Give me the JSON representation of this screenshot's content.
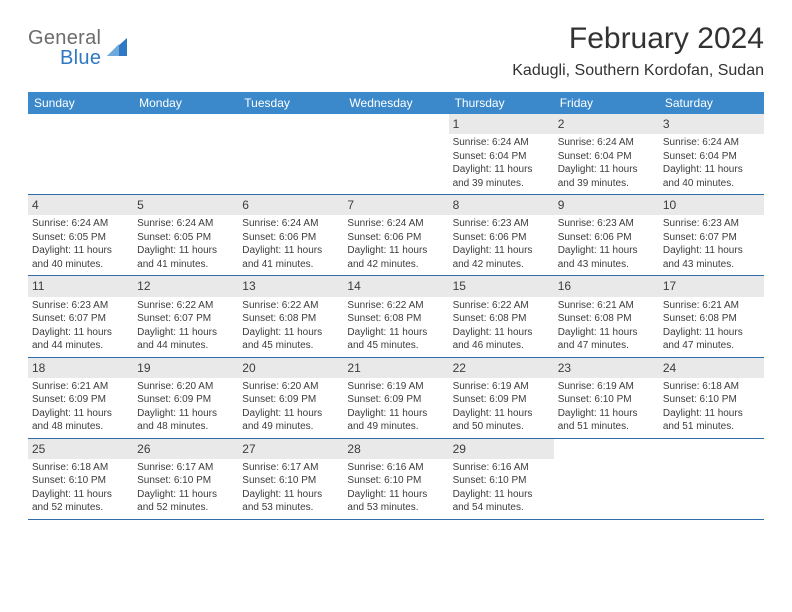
{
  "logo": {
    "general": "General",
    "blue": "Blue",
    "icon_color": "#2f78c3"
  },
  "title": "February 2024",
  "location": "Kadugli, Southern Kordofan, Sudan",
  "weekdays": [
    "Sunday",
    "Monday",
    "Tuesday",
    "Wednesday",
    "Thursday",
    "Friday",
    "Saturday"
  ],
  "colors": {
    "header_bg": "#3b89ca",
    "header_text": "#ffffff",
    "daynum_bg": "#e9e9e9",
    "border": "#2f6da9",
    "logo_gray": "#6c6c6c",
    "logo_blue": "#2f78c3",
    "text": "#3c3c3c"
  },
  "weeks": [
    [
      {
        "num": "",
        "sunrise": "",
        "sunset": "",
        "daylight1": "",
        "daylight2": ""
      },
      {
        "num": "",
        "sunrise": "",
        "sunset": "",
        "daylight1": "",
        "daylight2": ""
      },
      {
        "num": "",
        "sunrise": "",
        "sunset": "",
        "daylight1": "",
        "daylight2": ""
      },
      {
        "num": "",
        "sunrise": "",
        "sunset": "",
        "daylight1": "",
        "daylight2": ""
      },
      {
        "num": "1",
        "sunrise": "Sunrise: 6:24 AM",
        "sunset": "Sunset: 6:04 PM",
        "daylight1": "Daylight: 11 hours",
        "daylight2": "and 39 minutes."
      },
      {
        "num": "2",
        "sunrise": "Sunrise: 6:24 AM",
        "sunset": "Sunset: 6:04 PM",
        "daylight1": "Daylight: 11 hours",
        "daylight2": "and 39 minutes."
      },
      {
        "num": "3",
        "sunrise": "Sunrise: 6:24 AM",
        "sunset": "Sunset: 6:04 PM",
        "daylight1": "Daylight: 11 hours",
        "daylight2": "and 40 minutes."
      }
    ],
    [
      {
        "num": "4",
        "sunrise": "Sunrise: 6:24 AM",
        "sunset": "Sunset: 6:05 PM",
        "daylight1": "Daylight: 11 hours",
        "daylight2": "and 40 minutes."
      },
      {
        "num": "5",
        "sunrise": "Sunrise: 6:24 AM",
        "sunset": "Sunset: 6:05 PM",
        "daylight1": "Daylight: 11 hours",
        "daylight2": "and 41 minutes."
      },
      {
        "num": "6",
        "sunrise": "Sunrise: 6:24 AM",
        "sunset": "Sunset: 6:06 PM",
        "daylight1": "Daylight: 11 hours",
        "daylight2": "and 41 minutes."
      },
      {
        "num": "7",
        "sunrise": "Sunrise: 6:24 AM",
        "sunset": "Sunset: 6:06 PM",
        "daylight1": "Daylight: 11 hours",
        "daylight2": "and 42 minutes."
      },
      {
        "num": "8",
        "sunrise": "Sunrise: 6:23 AM",
        "sunset": "Sunset: 6:06 PM",
        "daylight1": "Daylight: 11 hours",
        "daylight2": "and 42 minutes."
      },
      {
        "num": "9",
        "sunrise": "Sunrise: 6:23 AM",
        "sunset": "Sunset: 6:06 PM",
        "daylight1": "Daylight: 11 hours",
        "daylight2": "and 43 minutes."
      },
      {
        "num": "10",
        "sunrise": "Sunrise: 6:23 AM",
        "sunset": "Sunset: 6:07 PM",
        "daylight1": "Daylight: 11 hours",
        "daylight2": "and 43 minutes."
      }
    ],
    [
      {
        "num": "11",
        "sunrise": "Sunrise: 6:23 AM",
        "sunset": "Sunset: 6:07 PM",
        "daylight1": "Daylight: 11 hours",
        "daylight2": "and 44 minutes."
      },
      {
        "num": "12",
        "sunrise": "Sunrise: 6:22 AM",
        "sunset": "Sunset: 6:07 PM",
        "daylight1": "Daylight: 11 hours",
        "daylight2": "and 44 minutes."
      },
      {
        "num": "13",
        "sunrise": "Sunrise: 6:22 AM",
        "sunset": "Sunset: 6:08 PM",
        "daylight1": "Daylight: 11 hours",
        "daylight2": "and 45 minutes."
      },
      {
        "num": "14",
        "sunrise": "Sunrise: 6:22 AM",
        "sunset": "Sunset: 6:08 PM",
        "daylight1": "Daylight: 11 hours",
        "daylight2": "and 45 minutes."
      },
      {
        "num": "15",
        "sunrise": "Sunrise: 6:22 AM",
        "sunset": "Sunset: 6:08 PM",
        "daylight1": "Daylight: 11 hours",
        "daylight2": "and 46 minutes."
      },
      {
        "num": "16",
        "sunrise": "Sunrise: 6:21 AM",
        "sunset": "Sunset: 6:08 PM",
        "daylight1": "Daylight: 11 hours",
        "daylight2": "and 47 minutes."
      },
      {
        "num": "17",
        "sunrise": "Sunrise: 6:21 AM",
        "sunset": "Sunset: 6:08 PM",
        "daylight1": "Daylight: 11 hours",
        "daylight2": "and 47 minutes."
      }
    ],
    [
      {
        "num": "18",
        "sunrise": "Sunrise: 6:21 AM",
        "sunset": "Sunset: 6:09 PM",
        "daylight1": "Daylight: 11 hours",
        "daylight2": "and 48 minutes."
      },
      {
        "num": "19",
        "sunrise": "Sunrise: 6:20 AM",
        "sunset": "Sunset: 6:09 PM",
        "daylight1": "Daylight: 11 hours",
        "daylight2": "and 48 minutes."
      },
      {
        "num": "20",
        "sunrise": "Sunrise: 6:20 AM",
        "sunset": "Sunset: 6:09 PM",
        "daylight1": "Daylight: 11 hours",
        "daylight2": "and 49 minutes."
      },
      {
        "num": "21",
        "sunrise": "Sunrise: 6:19 AM",
        "sunset": "Sunset: 6:09 PM",
        "daylight1": "Daylight: 11 hours",
        "daylight2": "and 49 minutes."
      },
      {
        "num": "22",
        "sunrise": "Sunrise: 6:19 AM",
        "sunset": "Sunset: 6:09 PM",
        "daylight1": "Daylight: 11 hours",
        "daylight2": "and 50 minutes."
      },
      {
        "num": "23",
        "sunrise": "Sunrise: 6:19 AM",
        "sunset": "Sunset: 6:10 PM",
        "daylight1": "Daylight: 11 hours",
        "daylight2": "and 51 minutes."
      },
      {
        "num": "24",
        "sunrise": "Sunrise: 6:18 AM",
        "sunset": "Sunset: 6:10 PM",
        "daylight1": "Daylight: 11 hours",
        "daylight2": "and 51 minutes."
      }
    ],
    [
      {
        "num": "25",
        "sunrise": "Sunrise: 6:18 AM",
        "sunset": "Sunset: 6:10 PM",
        "daylight1": "Daylight: 11 hours",
        "daylight2": "and 52 minutes."
      },
      {
        "num": "26",
        "sunrise": "Sunrise: 6:17 AM",
        "sunset": "Sunset: 6:10 PM",
        "daylight1": "Daylight: 11 hours",
        "daylight2": "and 52 minutes."
      },
      {
        "num": "27",
        "sunrise": "Sunrise: 6:17 AM",
        "sunset": "Sunset: 6:10 PM",
        "daylight1": "Daylight: 11 hours",
        "daylight2": "and 53 minutes."
      },
      {
        "num": "28",
        "sunrise": "Sunrise: 6:16 AM",
        "sunset": "Sunset: 6:10 PM",
        "daylight1": "Daylight: 11 hours",
        "daylight2": "and 53 minutes."
      },
      {
        "num": "29",
        "sunrise": "Sunrise: 6:16 AM",
        "sunset": "Sunset: 6:10 PM",
        "daylight1": "Daylight: 11 hours",
        "daylight2": "and 54 minutes."
      },
      {
        "num": "",
        "sunrise": "",
        "sunset": "",
        "daylight1": "",
        "daylight2": ""
      },
      {
        "num": "",
        "sunrise": "",
        "sunset": "",
        "daylight1": "",
        "daylight2": ""
      }
    ]
  ]
}
